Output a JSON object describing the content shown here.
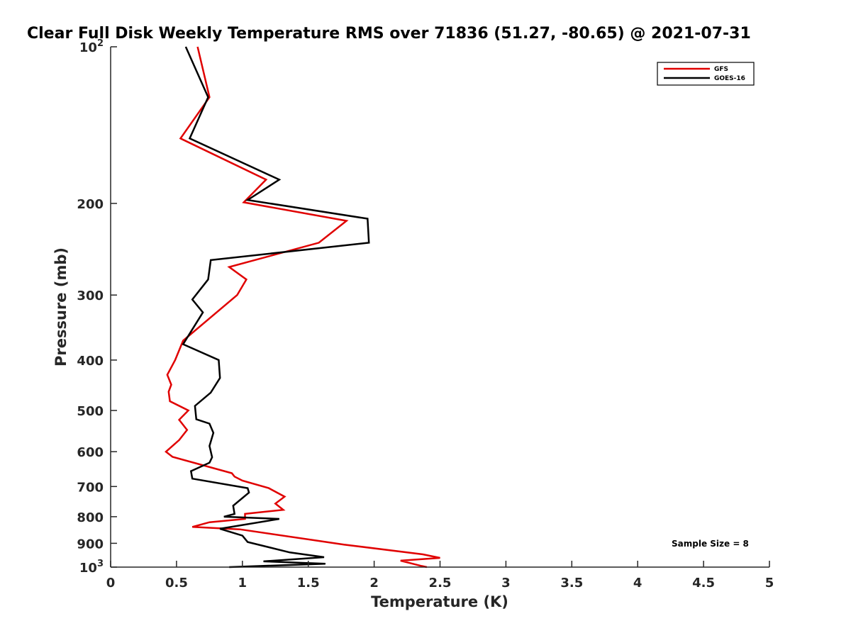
{
  "chart_data": {
    "type": "line",
    "title": "Clear Full Disk Weekly Temperature RMS over 71836 (51.27, -80.65) @ 2021-07-31",
    "xlabel": "Temperature (K)",
    "ylabel": "Pressure (mb)",
    "xlim": [
      0,
      5
    ],
    "ylim": [
      1000,
      100
    ],
    "y_scale": "log",
    "y_reversed": true,
    "grid": false,
    "legend_position": "top-right",
    "x_ticks": [
      "0",
      "0.5",
      "1",
      "1.5",
      "2",
      "2.5",
      "3",
      "3.5",
      "4",
      "4.5",
      "5"
    ],
    "y_ticks": [
      {
        "value": 100,
        "base": "10",
        "exp": "2",
        "label": ""
      },
      {
        "value": 200,
        "label": "200"
      },
      {
        "value": 300,
        "label": "300"
      },
      {
        "value": 400,
        "label": "400"
      },
      {
        "value": 500,
        "label": "500"
      },
      {
        "value": 600,
        "label": "600"
      },
      {
        "value": 700,
        "label": "700"
      },
      {
        "value": 800,
        "label": "800"
      },
      {
        "value": 900,
        "label": "900"
      },
      {
        "value": 1000,
        "base": "10",
        "exp": "3",
        "label": ""
      }
    ],
    "annotation": "Sample Size = 8",
    "series": [
      {
        "name": "GFS",
        "color": "#e00000",
        "points": [
          [
            0.66,
            100
          ],
          [
            0.75,
            125
          ],
          [
            0.53,
            150
          ],
          [
            1.18,
            180
          ],
          [
            1.01,
            199
          ],
          [
            1.79,
            216
          ],
          [
            1.58,
            238
          ],
          [
            0.9,
            265
          ],
          [
            1.03,
            280
          ],
          [
            0.96,
            300
          ],
          [
            0.55,
            367
          ],
          [
            0.49,
            400
          ],
          [
            0.43,
            427
          ],
          [
            0.46,
            446
          ],
          [
            0.44,
            460
          ],
          [
            0.45,
            480
          ],
          [
            0.59,
            500
          ],
          [
            0.52,
            521
          ],
          [
            0.58,
            545
          ],
          [
            0.52,
            570
          ],
          [
            0.42,
            600
          ],
          [
            0.47,
            614
          ],
          [
            0.92,
            660
          ],
          [
            0.94,
            670
          ],
          [
            1.0,
            682
          ],
          [
            1.2,
            705
          ],
          [
            1.32,
            732
          ],
          [
            1.25,
            755
          ],
          [
            1.31,
            776
          ],
          [
            1.02,
            790
          ],
          [
            1.02,
            808
          ],
          [
            0.75,
            820
          ],
          [
            0.62,
            837
          ],
          [
            0.98,
            846
          ],
          [
            1.77,
            905
          ],
          [
            2.37,
            945
          ],
          [
            2.5,
            960
          ],
          [
            2.2,
            972
          ],
          [
            2.36,
            995
          ],
          [
            2.4,
            1000
          ]
        ]
      },
      {
        "name": "GOES-16",
        "color": "#000000",
        "points": [
          [
            0.57,
            100
          ],
          [
            0.74,
            125
          ],
          [
            0.6,
            150
          ],
          [
            1.28,
            180
          ],
          [
            1.04,
            197
          ],
          [
            1.95,
            214
          ],
          [
            1.96,
            238
          ],
          [
            0.76,
            257
          ],
          [
            0.74,
            280
          ],
          [
            0.62,
            306
          ],
          [
            0.7,
            324
          ],
          [
            0.55,
            373
          ],
          [
            0.82,
            400
          ],
          [
            0.83,
            433
          ],
          [
            0.76,
            462
          ],
          [
            0.64,
            490
          ],
          [
            0.65,
            520
          ],
          [
            0.75,
            530
          ],
          [
            0.78,
            552
          ],
          [
            0.75,
            585
          ],
          [
            0.77,
            615
          ],
          [
            0.75,
            630
          ],
          [
            0.61,
            654
          ],
          [
            0.62,
            676
          ],
          [
            1.04,
            705
          ],
          [
            1.05,
            719
          ],
          [
            0.93,
            762
          ],
          [
            0.94,
            790
          ],
          [
            0.86,
            800
          ],
          [
            1.28,
            808
          ],
          [
            0.83,
            844
          ],
          [
            1.0,
            870
          ],
          [
            1.04,
            895
          ],
          [
            1.36,
            937
          ],
          [
            1.62,
            957
          ],
          [
            1.16,
            975
          ],
          [
            1.63,
            985
          ],
          [
            0.9,
            1000
          ]
        ]
      }
    ]
  }
}
